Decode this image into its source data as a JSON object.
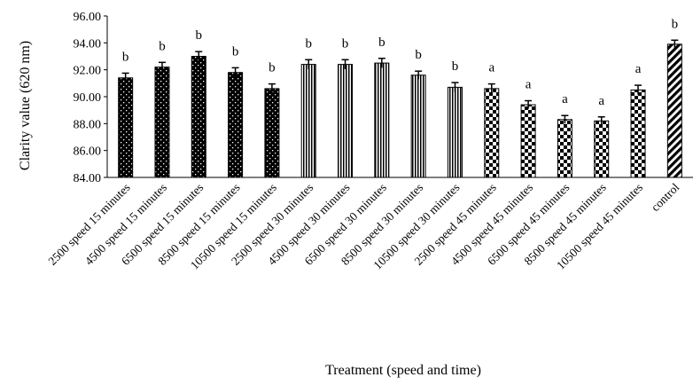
{
  "chart_data": {
    "type": "bar",
    "title": "",
    "xlabel": "Treatment (speed and time)",
    "ylabel": "Clarity value (620 nm)",
    "ylim": [
      84,
      96
    ],
    "yticks": [
      "84.00",
      "86.00",
      "88.00",
      "90.00",
      "92.00",
      "94.00",
      "96.00"
    ],
    "grid": false,
    "legend": "none",
    "categories": [
      "2500 speed 15 minutes",
      "4500 speed 15 minutes",
      "6500 speed 15 minutes",
      "8500 speed 15 minutes",
      "10500 speed 15 minutes",
      "2500 speed 30 minutes",
      "4500 speed 30 minutes",
      "6500 speed 30 minutes",
      "8500 speed 30 minutes",
      "10500 speed 30 minutes",
      "2500 speed 45 minutes",
      "4500 speed 45 minutes",
      "6500 speed 45 minutes",
      "8500 speed 45 minutes",
      "10500 speed 45 minutes",
      "control"
    ],
    "values": [
      91.4,
      92.2,
      93.0,
      91.8,
      90.6,
      92.4,
      92.4,
      92.5,
      91.6,
      90.7,
      90.6,
      89.4,
      88.3,
      88.2,
      90.5,
      93.9
    ],
    "errors": [
      0.35,
      0.35,
      0.35,
      0.35,
      0.35,
      0.35,
      0.35,
      0.35,
      0.3,
      0.35,
      0.35,
      0.3,
      0.3,
      0.3,
      0.35,
      0.3
    ],
    "significance": [
      "b",
      "b",
      "b",
      "b",
      "b",
      "b",
      "b",
      "b",
      "b",
      "b",
      "a",
      "a",
      "a",
      "a",
      "a",
      "b"
    ],
    "patterns": [
      "dots",
      "dots",
      "dots",
      "dots",
      "dots",
      "vlines",
      "vlines",
      "vlines",
      "vlines",
      "vlines",
      "checker",
      "checker",
      "checker",
      "checker",
      "checker",
      "diagonal"
    ]
  }
}
